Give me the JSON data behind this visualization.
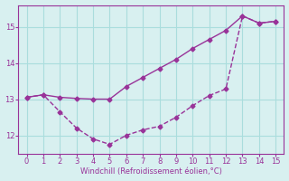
{
  "line1_x": [
    0,
    1,
    2,
    3,
    4,
    5,
    6,
    7,
    8,
    9,
    10,
    11,
    12,
    13,
    14,
    15
  ],
  "line1_y": [
    13.05,
    13.12,
    13.05,
    13.02,
    13.0,
    13.0,
    13.35,
    13.6,
    13.85,
    14.1,
    14.4,
    14.65,
    14.9,
    15.3,
    15.1,
    15.15
  ],
  "line2_x": [
    0,
    1,
    2,
    3,
    4,
    5,
    6,
    7,
    8,
    9,
    10,
    11,
    12,
    13,
    14,
    15
  ],
  "line2_y": [
    13.05,
    13.12,
    12.65,
    12.2,
    11.9,
    11.75,
    12.0,
    12.15,
    12.25,
    12.5,
    12.82,
    13.1,
    13.28,
    15.3,
    15.1,
    15.15
  ],
  "color": "#993399",
  "bg_color": "#d8f0f0",
  "grid_color": "#aadddd",
  "xlabel": "Windchill (Refroidissement éolien,°C)",
  "xlim": [
    -0.5,
    15.5
  ],
  "ylim": [
    11.5,
    15.6
  ],
  "yticks": [
    12,
    13,
    14,
    15
  ],
  "xticks": [
    0,
    1,
    2,
    3,
    4,
    5,
    6,
    7,
    8,
    9,
    10,
    11,
    12,
    13,
    14,
    15
  ]
}
